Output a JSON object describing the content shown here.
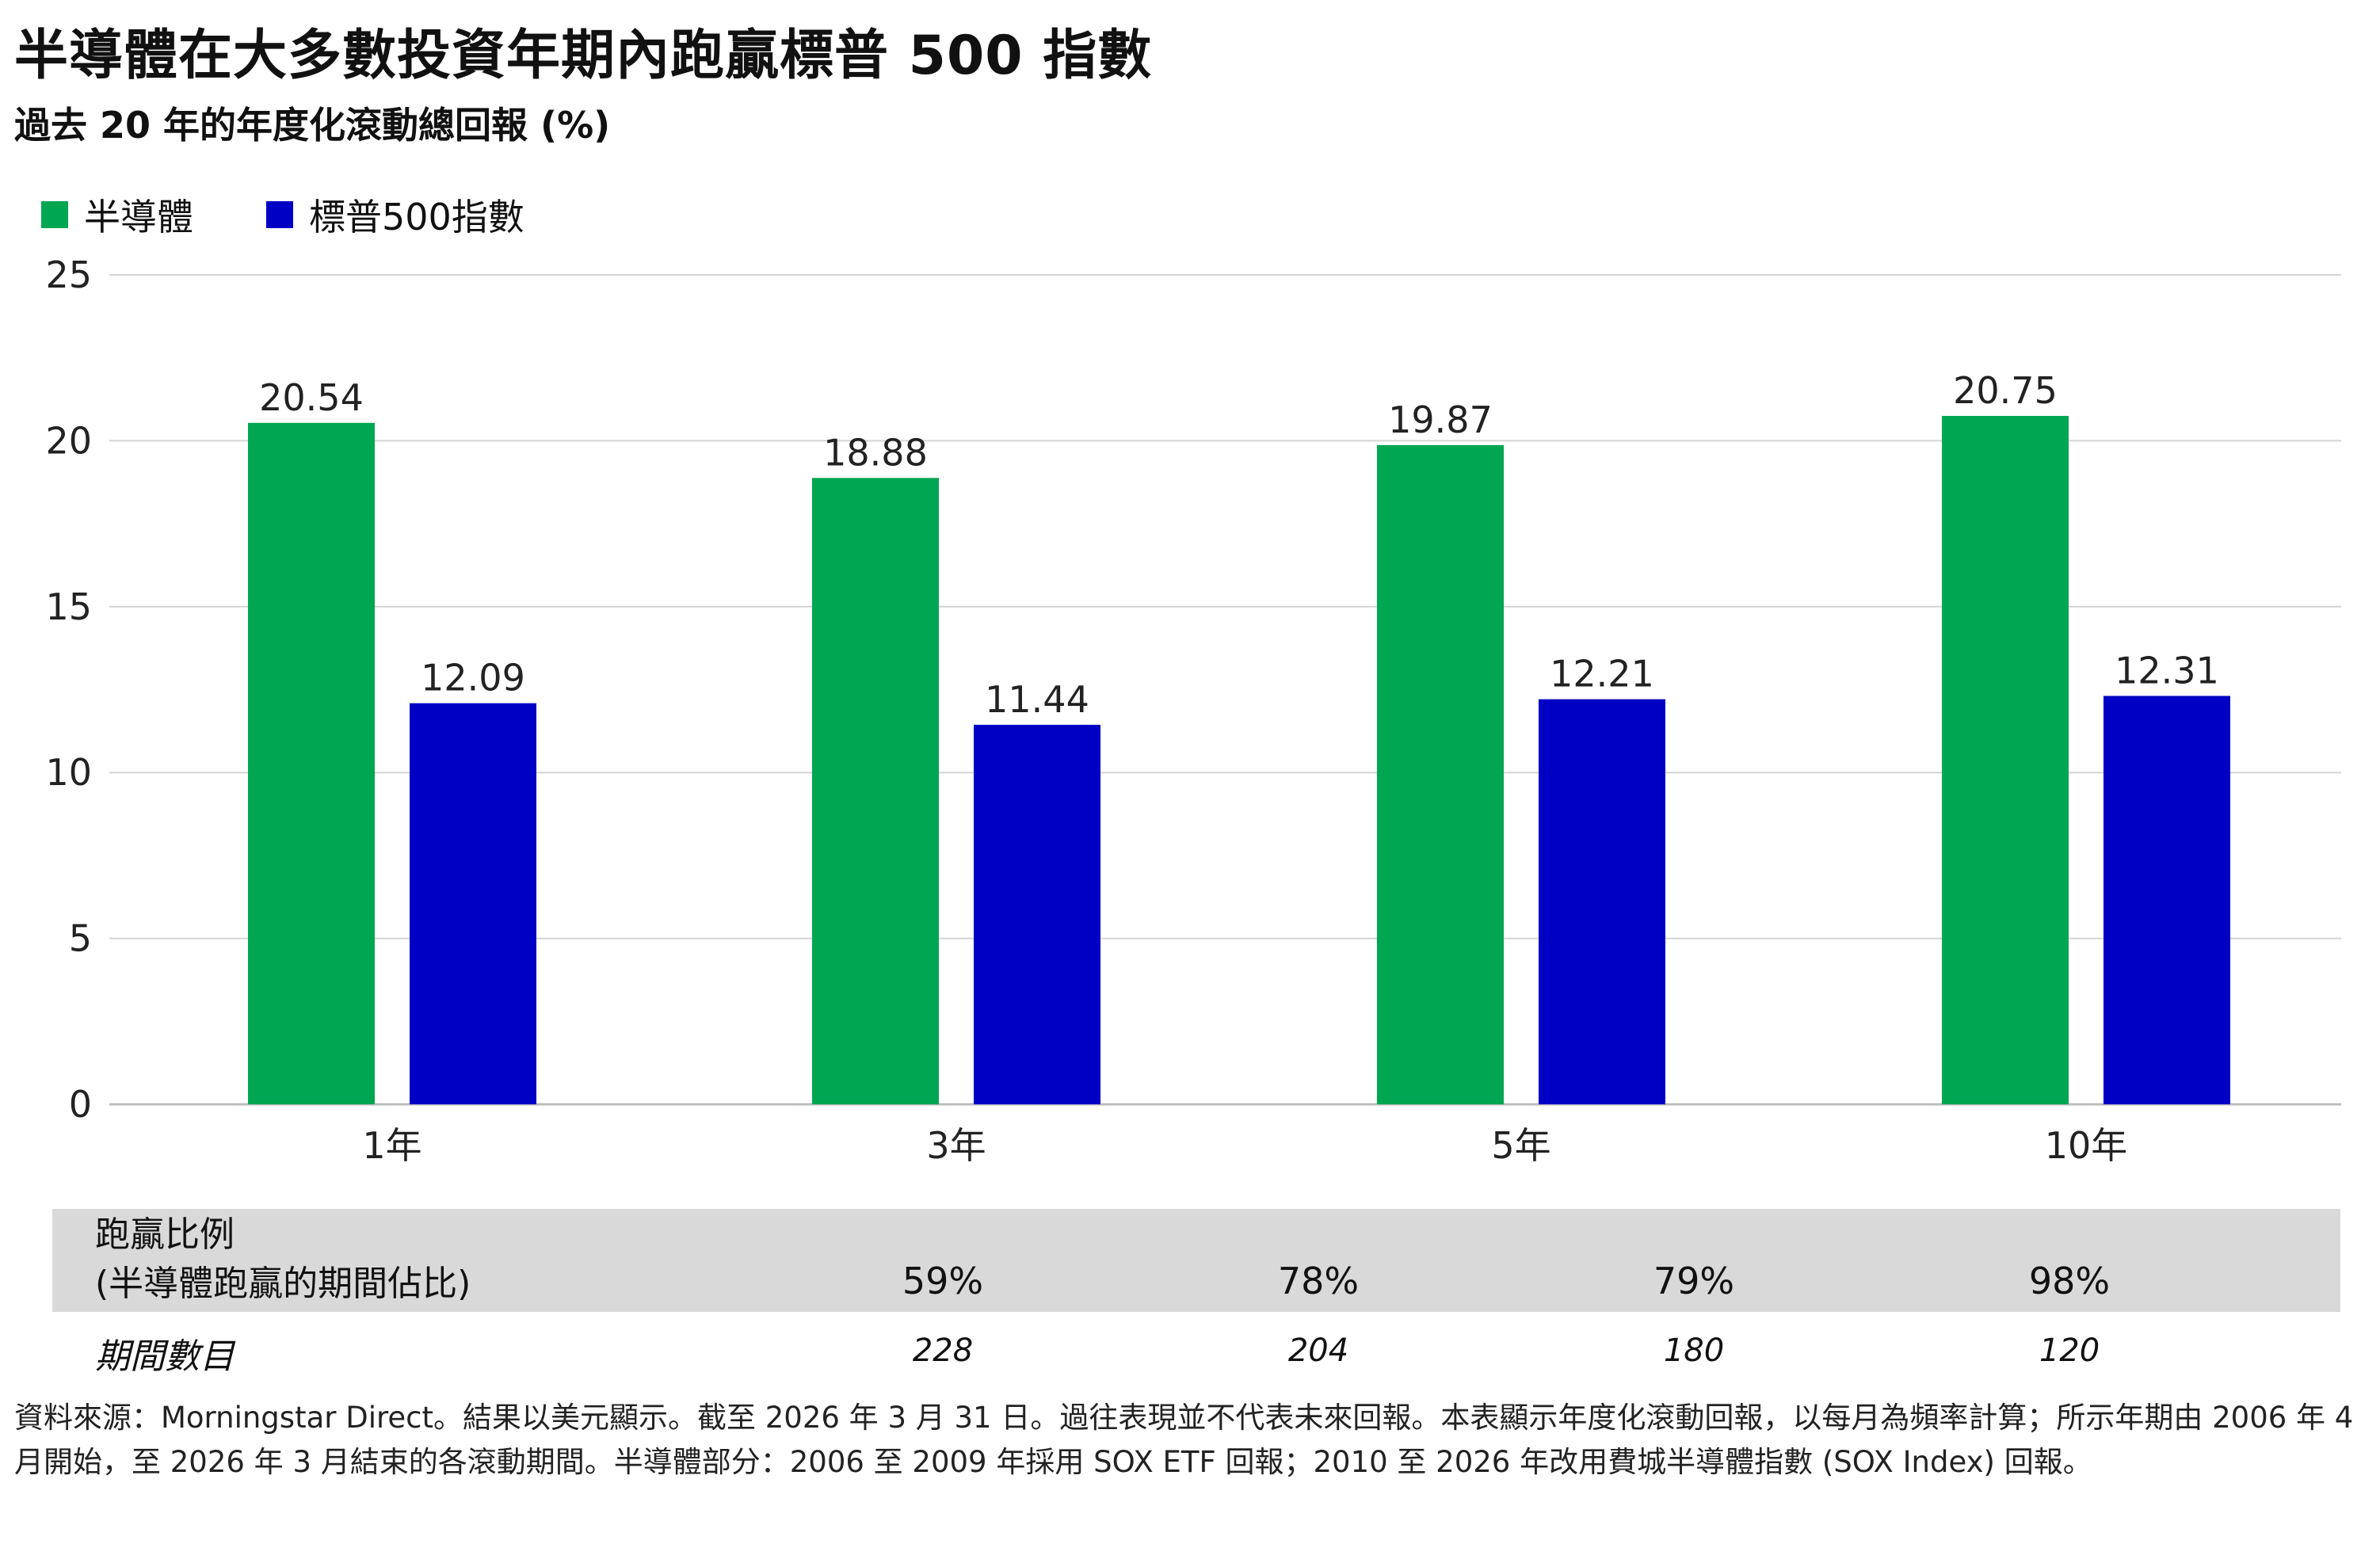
{
  "title": "半導體在大多數投資年期內跑贏標普 500 指數",
  "subtitle": "過去 20 年的年度化滾動總回報 (%)",
  "legend": [
    {
      "label": "半導體",
      "color": "#00a651"
    },
    {
      "label": "標普500指數",
      "color": "#0000c4"
    }
  ],
  "chart_data": {
    "type": "bar",
    "title": "半導體在大多數投資年期內跑贏標普 500 指數",
    "subtitle": "過去 20 年的年度化滾動總回報 (%)",
    "categories": [
      "1年",
      "3年",
      "5年",
      "10年"
    ],
    "series": [
      {
        "name": "半導體",
        "color": "#00a651",
        "values": [
          20.54,
          18.88,
          19.87,
          20.75
        ],
        "labels": [
          "20.54",
          "18.88",
          "19.87",
          "20.75"
        ]
      },
      {
        "name": "標普500指數",
        "color": "#0000c4",
        "values": [
          12.09,
          11.44,
          12.21,
          12.31
        ],
        "labels": [
          "12.09",
          "11.44",
          "12.21",
          "12.31"
        ]
      }
    ],
    "ylim": [
      0,
      25
    ],
    "yticks": [
      0,
      5,
      10,
      15,
      20,
      25
    ],
    "grid": true,
    "legend_position": "top-left"
  },
  "table": {
    "ratio_label_line1": "跑贏比例",
    "ratio_label_line2": "(半導體跑贏的期間佔比)",
    "ratio_values": [
      "59%",
      "78%",
      "79%",
      "98%"
    ],
    "period_label": "期間數目",
    "period_values": [
      "228",
      "204",
      "180",
      "120"
    ]
  },
  "footnote": "資料來源：Morningstar Direct。結果以美元顯示。截至 2026 年 3 月 31 日。過往表現並不代表未來回報。本表顯示年度化滾動回報，以每月為頻率計算；所示年期由 2006 年 4 月開始，至 2026 年 3 月結束的各滾動期間。半導體部分：2006 至 2009 年採用 SOX ETF 回報；2010 至 2026 年改用費城半導體指數 (SOX Index) 回報。"
}
